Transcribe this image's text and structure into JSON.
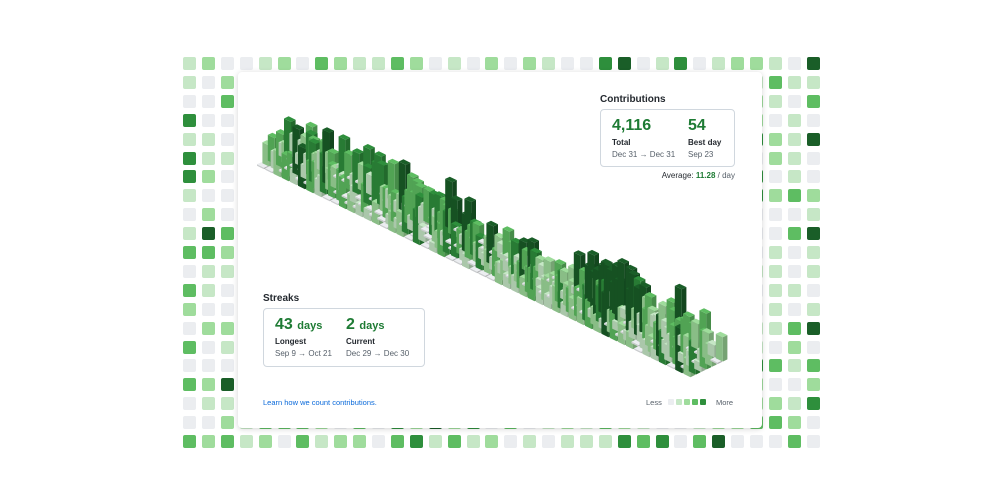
{
  "colors": {
    "level0": "#ebedf0",
    "level1": "#c6e7c6",
    "level2": "#9fdc9c",
    "level3": "#5ebd62",
    "level4": "#2e8f3c",
    "level5": "#1a5e28",
    "accent": "#1e7b34"
  },
  "contributions": {
    "title": "Contributions",
    "total_value": "4,116",
    "total_label": "Total",
    "total_range": "Dec 31 → Dec 31",
    "best_value": "54",
    "best_label": "Best day",
    "best_date": "Sep 23",
    "average_label": "Average:",
    "average_value": "11.28",
    "average_unit": "/ day"
  },
  "streaks": {
    "title": "Streaks",
    "longest_value": "43",
    "longest_unit": "days",
    "longest_label": "Longest",
    "longest_range": "Sep 9 → Oct 21",
    "current_value": "2",
    "current_unit": "days",
    "current_label": "Current",
    "current_range": "Dec 29 → Dec 30"
  },
  "footer": {
    "link_text": "Learn how we count contributions.",
    "legend_less": "Less",
    "legend_more": "More"
  }
}
